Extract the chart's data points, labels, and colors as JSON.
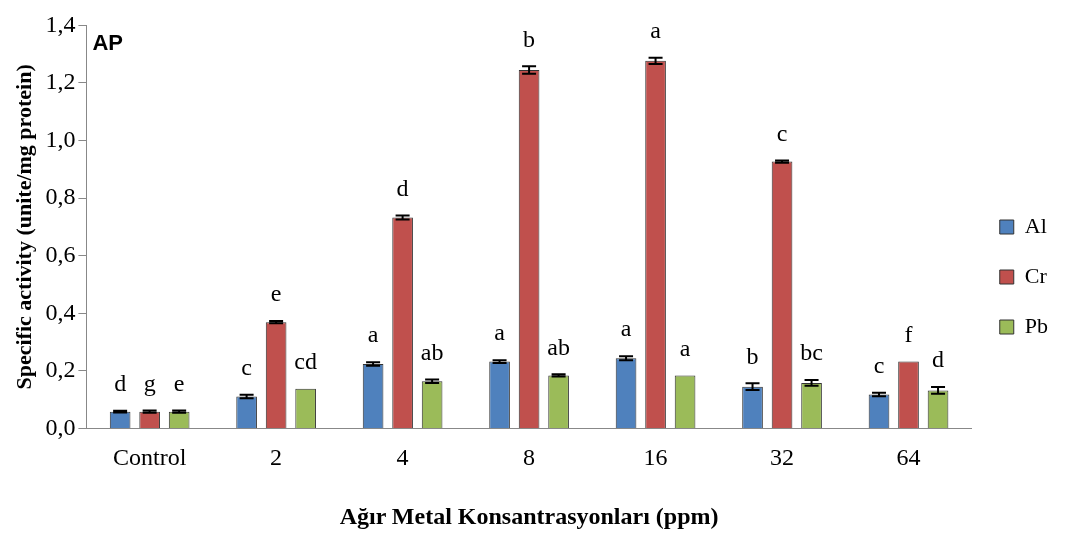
{
  "chart_data": {
    "type": "bar",
    "title": "AP",
    "xlabel": "Ağır Metal Konsantrasyonları (ppm)",
    "ylabel": "Specific activity (unite/mg protein)",
    "categories": [
      "Control",
      "2",
      "4",
      "8",
      "16",
      "32",
      "64"
    ],
    "series": [
      {
        "name": "Al",
        "color": "#4f81bd",
        "values": [
          0.058,
          0.111,
          0.224,
          0.232,
          0.244,
          0.145,
          0.118
        ],
        "errors": [
          0.003,
          0.006,
          0.006,
          0.005,
          0.007,
          0.012,
          0.006
        ],
        "value_labels": [
          "d",
          "c",
          "a",
          "a",
          "a",
          "b",
          "c"
        ]
      },
      {
        "name": "Cr",
        "color": "#c0504d",
        "values": [
          0.058,
          0.369,
          0.733,
          1.245,
          1.277,
          0.927,
          0.232
        ],
        "errors": [
          0.004,
          0.004,
          0.007,
          0.013,
          0.011,
          0.004,
          null
        ],
        "value_labels": [
          "g",
          "e",
          "d",
          "b",
          "a",
          "c",
          "f"
        ]
      },
      {
        "name": "Pb",
        "color": "#9bbb59",
        "values": [
          0.058,
          0.138,
          0.164,
          0.184,
          0.184,
          0.158,
          0.132
        ],
        "errors": [
          0.004,
          null,
          0.006,
          0.004,
          null,
          0.01,
          0.012
        ],
        "value_labels": [
          "e",
          "cd",
          "ab",
          "ab",
          "a",
          "bc",
          "d"
        ]
      }
    ],
    "ylim": [
      0,
      1.4
    ],
    "yticks": [
      {
        "value": 0,
        "label": "0,0"
      },
      {
        "value": 0.2,
        "label": "0,2"
      },
      {
        "value": 0.4,
        "label": "0,4"
      },
      {
        "value": 0.6,
        "label": "0,6"
      },
      {
        "value": 0.8,
        "label": "0,8"
      },
      {
        "value": 1.0,
        "label": "1,0"
      },
      {
        "value": 1.2,
        "label": "1,2"
      },
      {
        "value": 1.4,
        "label": "1,4"
      }
    ],
    "grid": false,
    "legend": "right"
  }
}
